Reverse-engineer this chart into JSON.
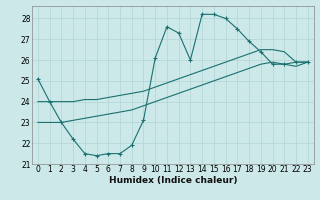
{
  "xlabel": "Humidex (Indice chaleur)",
  "background_color": "#cce8e8",
  "grid_color": "#b0d4d4",
  "line_color": "#1a7070",
  "xlim": [
    -0.5,
    23.5
  ],
  "ylim": [
    21,
    28.6
  ],
  "yticks": [
    21,
    22,
    23,
    24,
    25,
    26,
    27,
    28
  ],
  "xticks": [
    0,
    1,
    2,
    3,
    4,
    5,
    6,
    7,
    8,
    9,
    10,
    11,
    12,
    13,
    14,
    15,
    16,
    17,
    18,
    19,
    20,
    21,
    22,
    23
  ],
  "line1_x": [
    0,
    1,
    2,
    3,
    4,
    5,
    6,
    7,
    8,
    9,
    10,
    11,
    12,
    13,
    14,
    15,
    16,
    17,
    18,
    19,
    20,
    21,
    22,
    23
  ],
  "line1_y": [
    25.1,
    24.0,
    23.0,
    22.2,
    21.5,
    21.4,
    21.5,
    21.5,
    21.9,
    23.1,
    26.1,
    27.6,
    27.3,
    26.0,
    28.2,
    28.2,
    28.0,
    27.5,
    26.9,
    26.4,
    25.8,
    25.8,
    25.9,
    25.9
  ],
  "line2_x": [
    0,
    1,
    2,
    3,
    4,
    5,
    6,
    7,
    8,
    9,
    10,
    11,
    12,
    13,
    14,
    15,
    16,
    17,
    18,
    19,
    20,
    21,
    22,
    23
  ],
  "line2_y": [
    24.0,
    24.0,
    24.0,
    24.0,
    24.1,
    24.1,
    24.2,
    24.3,
    24.4,
    24.5,
    24.7,
    24.9,
    25.1,
    25.3,
    25.5,
    25.7,
    25.9,
    26.1,
    26.3,
    26.5,
    26.5,
    26.4,
    25.9,
    25.9
  ],
  "line3_x": [
    0,
    1,
    2,
    3,
    4,
    5,
    6,
    7,
    8,
    9,
    10,
    11,
    12,
    13,
    14,
    15,
    16,
    17,
    18,
    19,
    20,
    21,
    22,
    23
  ],
  "line3_y": [
    23.0,
    23.0,
    23.0,
    23.1,
    23.2,
    23.3,
    23.4,
    23.5,
    23.6,
    23.8,
    24.0,
    24.2,
    24.4,
    24.6,
    24.8,
    25.0,
    25.2,
    25.4,
    25.6,
    25.8,
    25.9,
    25.8,
    25.7,
    25.9
  ],
  "xlabel_fontsize": 6.5,
  "tick_fontsize": 5.5
}
